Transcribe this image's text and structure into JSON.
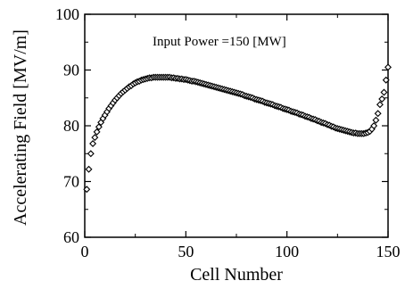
{
  "chart_data": {
    "type": "scatter",
    "annotation": "Input Power =150 [MW]",
    "xlabel": "Cell Number",
    "ylabel": "Accelerating Field [MV/m]",
    "xlim": [
      0,
      150
    ],
    "ylim": [
      60,
      100
    ],
    "x_ticks": [
      0,
      50,
      100,
      150
    ],
    "y_ticks": [
      60,
      70,
      80,
      90,
      100
    ],
    "marker": "open-diamond",
    "marker_color": "#000000",
    "grid": false,
    "series": [
      {
        "x": [
          1,
          2,
          3,
          4,
          5,
          6,
          7,
          8,
          9,
          10,
          11,
          12,
          13,
          14,
          15,
          16,
          17,
          18,
          19,
          20,
          21,
          22,
          23,
          24,
          25,
          26,
          27,
          28,
          29,
          30,
          31,
          32,
          33,
          34,
          35,
          36,
          37,
          38,
          39,
          40,
          41,
          42,
          43,
          44,
          45,
          46,
          47,
          48,
          49,
          50,
          51,
          52,
          53,
          54,
          55,
          56,
          57,
          58,
          59,
          60,
          61,
          62,
          63,
          64,
          65,
          66,
          67,
          68,
          69,
          70,
          71,
          72,
          73,
          74,
          75,
          76,
          77,
          78,
          79,
          80,
          81,
          82,
          83,
          84,
          85,
          86,
          87,
          88,
          89,
          90,
          91,
          92,
          93,
          94,
          95,
          96,
          97,
          98,
          99,
          100,
          101,
          102,
          103,
          104,
          105,
          106,
          107,
          108,
          109,
          110,
          111,
          112,
          113,
          114,
          115,
          116,
          117,
          118,
          119,
          120,
          121,
          122,
          123,
          124,
          125,
          126,
          127,
          128,
          129,
          130,
          131,
          132,
          133,
          134,
          135,
          136,
          137,
          138,
          139,
          140,
          141,
          142,
          143,
          144,
          145,
          146,
          147,
          148,
          149,
          150
        ],
        "y": [
          68.6,
          72.2,
          75.0,
          76.8,
          77.9,
          78.9,
          79.8,
          80.6,
          81.3,
          81.9,
          82.5,
          83.1,
          83.6,
          84.1,
          84.6,
          85.0,
          85.4,
          85.8,
          86.1,
          86.4,
          86.7,
          87.0,
          87.2,
          87.5,
          87.7,
          87.9,
          88.0,
          88.2,
          88.3,
          88.4,
          88.5,
          88.6,
          88.6,
          88.7,
          88.7,
          88.7,
          88.7,
          88.7,
          88.7,
          88.7,
          88.7,
          88.7,
          88.6,
          88.6,
          88.5,
          88.5,
          88.4,
          88.4,
          88.3,
          88.3,
          88.2,
          88.1,
          88.0,
          88.0,
          87.9,
          87.8,
          87.7,
          87.6,
          87.5,
          87.4,
          87.3,
          87.2,
          87.1,
          87.0,
          86.9,
          86.8,
          86.7,
          86.6,
          86.5,
          86.4,
          86.3,
          86.2,
          86.1,
          86.0,
          85.9,
          85.8,
          85.7,
          85.6,
          85.4,
          85.3,
          85.2,
          85.1,
          85.0,
          84.8,
          84.7,
          84.6,
          84.5,
          84.4,
          84.2,
          84.1,
          84.0,
          83.9,
          83.8,
          83.6,
          83.5,
          83.4,
          83.3,
          83.1,
          83.0,
          82.9,
          82.8,
          82.6,
          82.5,
          82.4,
          82.3,
          82.1,
          82.0,
          81.9,
          81.7,
          81.6,
          81.5,
          81.3,
          81.2,
          81.1,
          80.9,
          80.8,
          80.6,
          80.5,
          80.4,
          80.2,
          80.1,
          79.9,
          79.8,
          79.6,
          79.5,
          79.4,
          79.3,
          79.2,
          79.1,
          79.0,
          78.9,
          78.8,
          78.7,
          78.7,
          78.6,
          78.6,
          78.6,
          78.6,
          78.7,
          78.8,
          79.0,
          79.4,
          80.0,
          81.0,
          82.2,
          83.8,
          84.8,
          86.0,
          88.2,
          90.5
        ]
      }
    ]
  }
}
